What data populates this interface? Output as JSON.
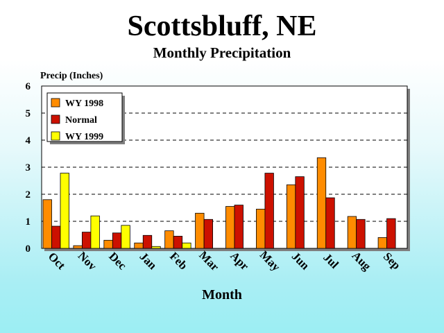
{
  "chart_data": {
    "type": "bar",
    "title": "Scottsbluff, NE",
    "subtitle": "Monthly Precipitation",
    "ylabel": "Precip (Inches)",
    "xlabel": "Month",
    "ylim": [
      0,
      6
    ],
    "yticks": [
      0,
      1,
      2,
      3,
      4,
      5,
      6
    ],
    "grid": "horizontal dashed",
    "legend_position": "top-left",
    "categories": [
      "Oct",
      "Nov",
      "Dec",
      "Jan",
      "Feb",
      "Mar",
      "Apr",
      "May",
      "Jun",
      "Jul",
      "Aug",
      "Sep"
    ],
    "series": [
      {
        "name": "WY 1998",
        "color": "#ff8c00",
        "values": [
          1.8,
          0.1,
          0.3,
          0.2,
          0.65,
          1.3,
          1.55,
          1.45,
          2.35,
          3.35,
          1.18,
          0.4
        ]
      },
      {
        "name": "Normal",
        "color": "#cc1100",
        "values": [
          0.82,
          0.6,
          0.57,
          0.48,
          0.45,
          1.07,
          1.6,
          2.78,
          2.65,
          1.87,
          1.07,
          1.1
        ]
      },
      {
        "name": "WY 1999",
        "color": "#ffff00",
        "values": [
          2.78,
          1.2,
          0.85,
          0.07,
          0.2,
          null,
          null,
          null,
          null,
          null,
          null,
          null
        ]
      }
    ]
  }
}
